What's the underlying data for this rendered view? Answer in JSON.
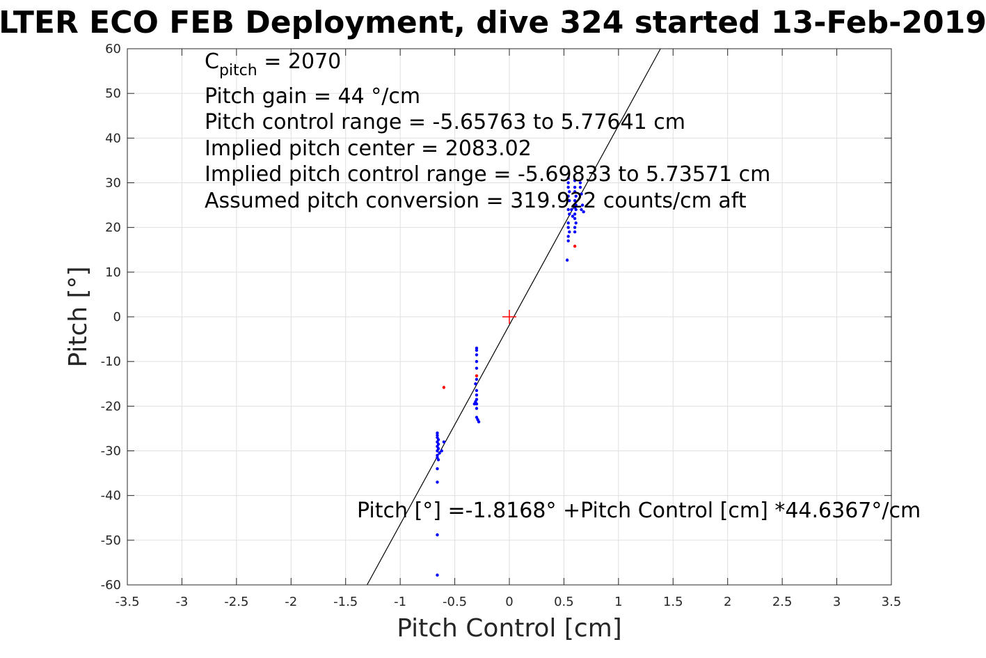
{
  "chart_data": {
    "type": "scatter",
    "title": "LTER ECO FEB Deployment, dive 324 started 13-Feb-2019",
    "xlabel": "Pitch Control [cm]",
    "ylabel": "Pitch [°]",
    "xlim": [
      -3.5,
      3.5
    ],
    "ylim": [
      -60,
      60
    ],
    "xticks": [
      "-3.5",
      "-3",
      "-2.5",
      "-2",
      "-1.5",
      "-1",
      "-0.5",
      "0",
      "0.5",
      "1",
      "1.5",
      "2",
      "2.5",
      "3",
      "3.5"
    ],
    "yticks": [
      "60",
      "50",
      "40",
      "30",
      "20",
      "10",
      "0",
      "-10",
      "-20",
      "-30",
      "-40",
      "-50",
      "-60"
    ],
    "grid": true,
    "annotations": {
      "c_pitch_main": "C",
      "c_pitch_sub": "pitch",
      "c_pitch_value": " = 2070",
      "line2": "Pitch gain = 44 °/cm",
      "line3": "Pitch control range = -5.65763 to 5.77641 cm",
      "line4": "Implied pitch center = 2083.02",
      "line5": "Implied pitch control range = -5.69833 to 5.73571 cm",
      "line6": "Assumed pitch conversion = 319.922 counts/cm aft",
      "fit_equation": "Pitch [°] =-1.8168° +Pitch Control [cm] *44.6367°/cm"
    },
    "fit_line": {
      "intercept": -1.8168,
      "slope": 44.6367,
      "color": "#000000"
    },
    "center_marker": {
      "x": 0,
      "y": 0,
      "color": "#ff0000"
    },
    "series": [
      {
        "color": "#0000ff",
        "points": [
          [
            0.54,
            31
          ],
          [
            0.54,
            30
          ],
          [
            0.54,
            29
          ],
          [
            0.55,
            28
          ],
          [
            0.54,
            27
          ],
          [
            0.55,
            26
          ],
          [
            0.54,
            24
          ],
          [
            0.55,
            23
          ],
          [
            0.54,
            21
          ],
          [
            0.54,
            20
          ],
          [
            0.55,
            19
          ],
          [
            0.54,
            18
          ],
          [
            0.54,
            17
          ],
          [
            0.53,
            12.7
          ],
          [
            0.6,
            30.5
          ],
          [
            0.6,
            29
          ],
          [
            0.6,
            28
          ],
          [
            0.61,
            27
          ],
          [
            0.6,
            26
          ],
          [
            0.61,
            25
          ],
          [
            0.6,
            24.5
          ],
          [
            0.61,
            24
          ],
          [
            0.6,
            23
          ],
          [
            0.6,
            22
          ],
          [
            0.61,
            21
          ],
          [
            0.6,
            20
          ],
          [
            0.6,
            19
          ],
          [
            0.65,
            30
          ],
          [
            0.65,
            29
          ],
          [
            0.66,
            27.5
          ],
          [
            0.67,
            25
          ],
          [
            0.66,
            24
          ],
          [
            0.68,
            23.5
          ],
          [
            0.57,
            24
          ],
          [
            0.58,
            22.5
          ],
          [
            -0.3,
            -7
          ],
          [
            -0.3,
            -7.5
          ],
          [
            -0.3,
            -8.5
          ],
          [
            -0.3,
            -10
          ],
          [
            -0.3,
            -11.5
          ],
          [
            -0.3,
            -14
          ],
          [
            -0.31,
            -15
          ],
          [
            -0.3,
            -16.5
          ],
          [
            -0.3,
            -17.5
          ],
          [
            -0.3,
            -18.5
          ],
          [
            -0.31,
            -19
          ],
          [
            -0.3,
            -19.5
          ],
          [
            -0.32,
            -19.5
          ],
          [
            -0.3,
            -20.5
          ],
          [
            -0.3,
            -22.5
          ],
          [
            -0.29,
            -23
          ],
          [
            -0.28,
            -23.5
          ],
          [
            -0.66,
            -26
          ],
          [
            -0.66,
            -26.5
          ],
          [
            -0.66,
            -27
          ],
          [
            -0.65,
            -27.5
          ],
          [
            -0.66,
            -28
          ],
          [
            -0.65,
            -28.5
          ],
          [
            -0.66,
            -29
          ],
          [
            -0.65,
            -29.5
          ],
          [
            -0.66,
            -30
          ],
          [
            -0.64,
            -30.5
          ],
          [
            -0.66,
            -31
          ],
          [
            -0.66,
            -31.5
          ],
          [
            -0.65,
            -32
          ],
          [
            -0.62,
            -30
          ],
          [
            -0.6,
            -28
          ],
          [
            -0.66,
            -34
          ],
          [
            -0.66,
            -37
          ],
          [
            -0.66,
            -48.8
          ],
          [
            -0.66,
            -57.8
          ]
        ]
      },
      {
        "color": "#ff0000",
        "points": [
          [
            0.6,
            15.8
          ],
          [
            -0.6,
            -15.8
          ],
          [
            -0.3,
            -13.2
          ]
        ]
      }
    ]
  }
}
